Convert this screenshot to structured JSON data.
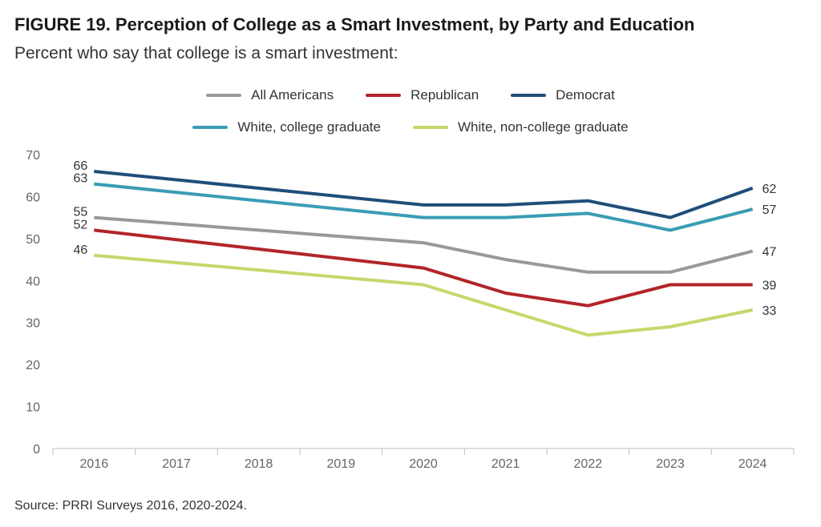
{
  "header": {
    "title": "FIGURE 19.  Perception of College as a Smart Investment, by Party and Education",
    "subtitle": "Percent who say that college is a smart investment:"
  },
  "footer": {
    "source": "Source: PRRI Surveys 2016, 2020-2024."
  },
  "chart_data": {
    "type": "line",
    "title": "FIGURE 19.  Perception of College as a Smart Investment, by Party and Education",
    "subtitle": "Percent who say that college is a smart investment:",
    "categories": [
      "2016",
      "2017",
      "2018",
      "2019",
      "2020",
      "2021",
      "2022",
      "2023",
      "2024"
    ],
    "ylim": [
      0,
      70
    ],
    "yticks": [
      0,
      10,
      20,
      30,
      40,
      50,
      60,
      70
    ],
    "grid": false,
    "legend_position": "top",
    "series": [
      {
        "name": "All Americans",
        "color": "#999999",
        "values": [
          55,
          null,
          null,
          null,
          49,
          45,
          42,
          42,
          47
        ],
        "start_label": "55",
        "end_label": "47"
      },
      {
        "name": "Republican",
        "color": "#b22529",
        "values": [
          52,
          null,
          null,
          null,
          43,
          37,
          34,
          39,
          39
        ],
        "start_label": "52",
        "end_label": "39"
      },
      {
        "name": "Democrat",
        "color": "#1f4e79",
        "values": [
          66,
          null,
          null,
          null,
          58,
          58,
          59,
          55,
          62
        ],
        "start_label": "66",
        "end_label": "62"
      },
      {
        "name": "White, college graduate",
        "color": "#3a9cb5",
        "values": [
          63,
          null,
          null,
          null,
          55,
          55,
          56,
          52,
          57
        ],
        "start_label": "63",
        "end_label": "57"
      },
      {
        "name": "White, non-college graduate",
        "color": "#c3d96b",
        "values": [
          46,
          null,
          null,
          null,
          39,
          33,
          27,
          29,
          33
        ],
        "start_label": "46",
        "end_label": "33"
      }
    ],
    "source": "Source: PRRI Surveys 2016, 2020-2024."
  }
}
